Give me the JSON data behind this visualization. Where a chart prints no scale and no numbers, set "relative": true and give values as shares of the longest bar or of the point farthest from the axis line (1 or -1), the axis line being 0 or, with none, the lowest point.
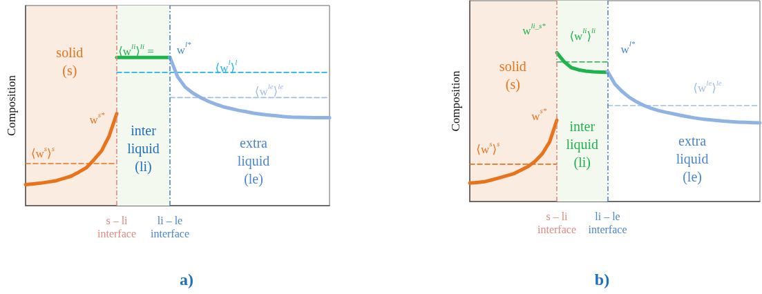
{
  "chart_data": [
    {
      "type": "line",
      "title": "a)",
      "ylabel": "Composition",
      "relative": true,
      "grid": false,
      "marker": "none",
      "categories": [
        null,
        null,
        null,
        null,
        null,
        null,
        null,
        null,
        null,
        null,
        null,
        null,
        "s – li\ninterface",
        null,
        null,
        null,
        null,
        null,
        null,
        "li – le\ninterface",
        null,
        null,
        null,
        null,
        null,
        null,
        null,
        null,
        null,
        null,
        null,
        null,
        null,
        null,
        null,
        null,
        null,
        null,
        null,
        null,
        null
      ],
      "bands": [
        {
          "axis": "x",
          "from": "s – li\ninterface",
          "to": "li – le\ninterface",
          "label": "inter\nliquid\n(li)",
          "color": "#f4f9ef"
        }
      ],
      "ref_lines": [
        {
          "axis": "x",
          "value": "s – li\ninterface",
          "color": "#e08a80",
          "line_style": "dashed"
        },
        {
          "axis": "x",
          "value": "li – le\ninterface",
          "color": "#4a86d0",
          "line_style": "dashed"
        }
      ],
      "series": [
        {
          "color": "#e8731a",
          "line_style": "solid",
          "values": [
            0.142,
            0.147,
            0.152,
            0.16,
            0.168,
            0.183,
            0.199,
            0.226,
            0.256,
            0.31,
            0.369,
            0.47,
            0.621,
            null,
            null,
            null,
            null,
            null,
            null,
            null,
            null,
            null,
            null,
            null,
            null,
            null,
            null,
            null,
            null,
            null,
            null,
            null,
            null,
            null,
            null,
            null,
            null,
            null,
            null,
            null,
            null
          ]
        },
        {
          "color": "#e8731a",
          "line_style": "dashed",
          "values": [
            0.284,
            0.284,
            0.284,
            0.284,
            0.284,
            0.284,
            0.284,
            0.284,
            0.284,
            0.284,
            0.284,
            0.284,
            0.284,
            null,
            null,
            null,
            null,
            null,
            null,
            null,
            null,
            null,
            null,
            null,
            null,
            null,
            null,
            null,
            null,
            null,
            null,
            null,
            null,
            null,
            null,
            null,
            null,
            null,
            null,
            null,
            null
          ]
        },
        {
          "color": "#1fb34f",
          "line_style": "solid",
          "values": [
            null,
            null,
            null,
            null,
            null,
            null,
            null,
            null,
            null,
            null,
            null,
            null,
            1,
            1,
            1,
            1,
            1,
            1,
            1,
            1,
            null,
            null,
            null,
            null,
            null,
            null,
            null,
            null,
            null,
            null,
            null,
            null,
            null,
            null,
            null,
            null,
            null,
            null,
            null,
            null,
            null
          ]
        },
        {
          "color": "#1eb4ec",
          "line_style": "dashed",
          "values": [
            null,
            null,
            null,
            null,
            null,
            null,
            null,
            null,
            null,
            null,
            null,
            null,
            0.899,
            0.899,
            0.899,
            0.899,
            0.899,
            0.899,
            0.899,
            0.899,
            0.899,
            0.899,
            0.899,
            0.899,
            0.899,
            0.899,
            0.899,
            0.899,
            0.899,
            0.899,
            0.899,
            0.899,
            0.899,
            0.899,
            0.899,
            0.899,
            0.899,
            0.899,
            0.899,
            0.899,
            0.899
          ]
        },
        {
          "color": "#9fbde6",
          "line_style": "dashed",
          "values": [
            null,
            null,
            null,
            null,
            null,
            null,
            null,
            null,
            null,
            null,
            null,
            null,
            null,
            null,
            null,
            null,
            null,
            null,
            null,
            0.729,
            0.729,
            0.729,
            0.729,
            0.729,
            0.729,
            0.729,
            0.729,
            0.729,
            0.729,
            0.729,
            0.729,
            0.729,
            0.729,
            0.729,
            0.729,
            0.729,
            0.729,
            0.729,
            0.729,
            0.729,
            0.729
          ]
        },
        {
          "color": "#8fb4e3",
          "line_style": "solid",
          "values": [
            null,
            null,
            null,
            null,
            null,
            null,
            null,
            null,
            null,
            null,
            null,
            null,
            null,
            null,
            null,
            null,
            null,
            null,
            null,
            1,
            0.87,
            0.8,
            0.76,
            0.73,
            0.705,
            0.685,
            0.667,
            0.655,
            0.643,
            0.634,
            0.624,
            0.617,
            0.611,
            0.606,
            0.601,
            0.597,
            0.596,
            0.595,
            0.594,
            0.594,
            0.594
          ]
        }
      ],
      "annotations": [
        "⟨w$^{s}$⟩$^{s}$",
        "w$^{s*}$",
        "⟨w$^{li}$⟩$^{li}$ =",
        "w$^{l*}$",
        "⟨w$^{l}$⟩$^{l}$",
        "⟨w$^{le}$⟩$^{le}$",
        "extra\nliquid\n(le)",
        "solid\n(s)"
      ]
    },
    {
      "type": "line",
      "title": "b)",
      "ylabel": "Composition",
      "relative": true,
      "grid": false,
      "marker": "none",
      "categories": [
        null,
        null,
        null,
        null,
        null,
        null,
        null,
        null,
        null,
        null,
        null,
        null,
        "s – li\ninterface",
        null,
        null,
        null,
        null,
        null,
        null,
        "li – le\ninterface",
        null,
        null,
        null,
        null,
        null,
        null,
        null,
        null,
        null,
        null,
        null,
        null,
        null,
        null,
        null,
        null,
        null,
        null,
        null,
        null,
        null
      ],
      "bands": [
        {
          "axis": "x",
          "from": "s – li\ninterface",
          "to": "li – le\ninterface",
          "label": "inter\nliquid\n(li)",
          "color": "#f4f9ef"
        }
      ],
      "ref_lines": [
        {
          "axis": "x",
          "value": "s – li\ninterface",
          "color": "#e08a80",
          "line_style": "dashed"
        },
        {
          "axis": "x",
          "value": "li – le\ninterface",
          "color": "#4a86d0",
          "line_style": "dashed"
        }
      ],
      "series": [
        {
          "color": "#e8731a",
          "line_style": "solid",
          "values": [
            0.124,
            0.128,
            0.133,
            0.145,
            0.158,
            0.172,
            0.186,
            0.21,
            0.234,
            0.27,
            0.321,
            0.4,
            0.546,
            null,
            null,
            null,
            null,
            null,
            null,
            null,
            null,
            null,
            null,
            null,
            null,
            null,
            null,
            null,
            null,
            null,
            null,
            null,
            null,
            null,
            null,
            null,
            null,
            null,
            null,
            null,
            null
          ]
        },
        {
          "color": "#e8731a",
          "line_style": "dashed",
          "values": [
            0.251,
            0.251,
            0.251,
            0.251,
            0.251,
            0.251,
            0.251,
            0.251,
            0.251,
            0.251,
            0.251,
            0.251,
            0.251,
            null,
            null,
            null,
            null,
            null,
            null,
            null,
            null,
            null,
            null,
            null,
            null,
            null,
            null,
            null,
            null,
            null,
            null,
            null,
            null,
            null,
            null,
            null,
            null,
            null,
            null,
            null,
            null
          ]
        },
        {
          "color": "#1fb34f",
          "line_style": "solid",
          "values": [
            null,
            null,
            null,
            null,
            null,
            null,
            null,
            null,
            null,
            null,
            null,
            null,
            1,
            0.94,
            0.9,
            0.885,
            0.877,
            0.872,
            0.87,
            0.869,
            null,
            null,
            null,
            null,
            null,
            null,
            null,
            null,
            null,
            null,
            null,
            null,
            null,
            null,
            null,
            null,
            null,
            null,
            null,
            null,
            null
          ]
        },
        {
          "color": "#1fb34f",
          "line_style": "dashed",
          "values": [
            null,
            null,
            null,
            null,
            null,
            null,
            null,
            null,
            null,
            null,
            null,
            null,
            0.938,
            0.938,
            0.938,
            0.938,
            0.938,
            0.938,
            0.938,
            0.938,
            null,
            null,
            null,
            null,
            null,
            null,
            null,
            null,
            null,
            null,
            null,
            null,
            null,
            null,
            null,
            null,
            null,
            null,
            null,
            null,
            null
          ]
        },
        {
          "color": "#9fbde6",
          "line_style": "dashed",
          "values": [
            null,
            null,
            null,
            null,
            null,
            null,
            null,
            null,
            null,
            null,
            null,
            null,
            null,
            null,
            null,
            null,
            null,
            null,
            null,
            0.645,
            0.645,
            0.645,
            0.645,
            0.645,
            0.645,
            0.645,
            0.645,
            0.645,
            0.645,
            0.645,
            0.645,
            0.645,
            0.645,
            0.645,
            0.645,
            0.645,
            0.645,
            0.645,
            0.645,
            0.645,
            0.645
          ]
        },
        {
          "color": "#8fb4e3",
          "line_style": "solid",
          "values": [
            null,
            null,
            null,
            null,
            null,
            null,
            null,
            null,
            null,
            null,
            null,
            null,
            null,
            null,
            null,
            null,
            null,
            null,
            null,
            0.875,
            0.79,
            0.74,
            0.7,
            0.67,
            0.646,
            0.627,
            0.612,
            0.6,
            0.59,
            0.58,
            0.571,
            0.562,
            0.555,
            0.55,
            0.545,
            0.54,
            0.537,
            0.534,
            0.532,
            0.53,
            0.529
          ]
        }
      ],
      "annotations": [
        "w$^{li_s*}$",
        "⟨w$^{li}$⟩$^{li}$",
        "w$^{l*}$",
        "⟨w$^{le}$⟩$^{le}$",
        "w$^{s*}$",
        "⟨w$^{s}$⟩$^{s}$",
        "extra\nliquid\n(le)",
        "solid\n(s)"
      ]
    }
  ]
}
